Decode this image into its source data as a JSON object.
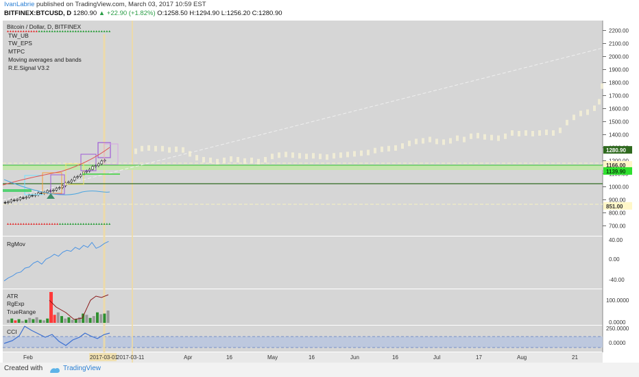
{
  "header": {
    "author": "IvanLabrie",
    "published": "published on TradingView.com, March 03, 2017 10:59 EST",
    "symbol": "BITFINEX:BTCUSD, D",
    "last": "1280.90",
    "change": "▲ +22.90 (+1.82%)",
    "open": "O:1258.50",
    "high": "H:1294.90",
    "low": "L:1256.20",
    "close": "C:1280.90"
  },
  "chart_data": {
    "type": "table",
    "title": "Bitcoin / Dollar, D, BITFINEX",
    "indicators": [
      "TW_UB",
      "TW_EPS",
      "MTPC",
      "Moving averages and bands",
      "R.E.Signal V3.2"
    ],
    "price_axis": {
      "ticks": [
        "2200.00",
        "2100.00",
        "2000.00",
        "1900.00",
        "1800.00",
        "1700.00",
        "1600.00",
        "1500.00",
        "1400.00",
        "1300.00",
        "1200.00",
        "1100.00",
        "1000.00",
        "900.00",
        "800.00",
        "700.00"
      ],
      "ylim": [
        650,
        2250
      ]
    },
    "price_labels": [
      {
        "text": "1280.90",
        "value": 1280.9,
        "style": "dark-green"
      },
      {
        "text": "1166.00",
        "value": 1166,
        "style": "yellow"
      },
      {
        "text": "1139.90",
        "value": 1139.9,
        "style": "green"
      },
      {
        "text": "851.00",
        "value": 851,
        "style": "yellow"
      }
    ],
    "x_ticks": [
      "Feb",
      "2017-03-11",
      "Apr",
      "16",
      "May",
      "16",
      "Jun",
      "16",
      "Jul",
      "17",
      "Aug",
      "21"
    ],
    "x_highlight": "2017-03-01",
    "panes": [
      {
        "name": "RgMov",
        "ticks": [
          "40.00",
          "0.00",
          "-40.00"
        ]
      },
      {
        "name": "ATR",
        "labels": [
          "ATR",
          "RgExp",
          "TrueRange"
        ],
        "ticks": [
          "100.0000",
          "0.0000"
        ]
      },
      {
        "name": "CCI",
        "ticks": [
          "250.0000",
          "0.0000"
        ]
      }
    ]
  },
  "footer": {
    "created": "Created with",
    "brand": "TradingView"
  }
}
